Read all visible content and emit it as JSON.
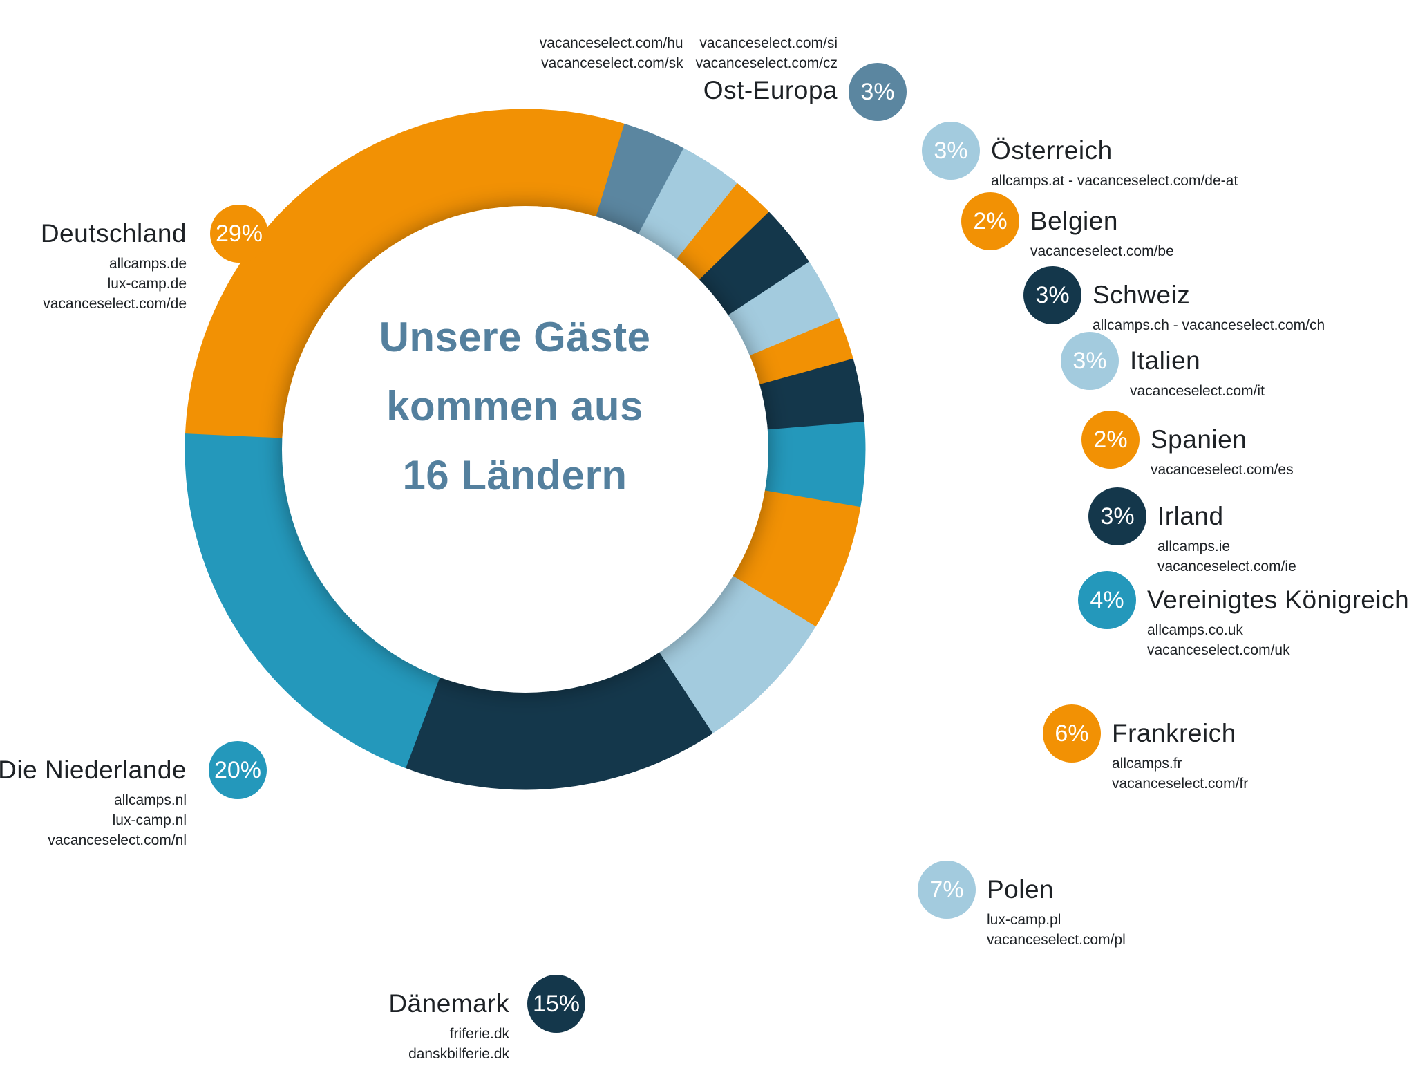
{
  "center": {
    "line1": "Unsere Gäste",
    "line2": "kommen aus",
    "line3": "16 Ländern"
  },
  "colors": {
    "orange": "#f29104",
    "teal": "#2498bb",
    "navy": "#14374b",
    "light_blue": "#a3cbde",
    "steel_blue": "#5b86a0",
    "center_text": "#54809e",
    "label_text": "#1d2125"
  },
  "chart_data": {
    "type": "donut",
    "title": "Unsere Gäste kommen aus 16 Ländern",
    "unit": "%",
    "start_angle_deg": 272.6,
    "legend_position": "around",
    "segments": [
      {
        "label": "Deutschland",
        "value": 29,
        "color": "#f29104"
      },
      {
        "label": "Ost-Europa",
        "value": 3,
        "color": "#5b86a0"
      },
      {
        "label": "Österreich",
        "value": 3,
        "color": "#a3cbde"
      },
      {
        "label": "Belgien",
        "value": 2,
        "color": "#f29104"
      },
      {
        "label": "Schweiz",
        "value": 3,
        "color": "#14374b"
      },
      {
        "label": "Italien",
        "value": 3,
        "color": "#a3cbde"
      },
      {
        "label": "Spanien",
        "value": 2,
        "color": "#f29104"
      },
      {
        "label": "Irland",
        "value": 3,
        "color": "#14374b"
      },
      {
        "label": "Vereinigtes Königreich",
        "value": 4,
        "color": "#2498bb"
      },
      {
        "label": "Frankreich",
        "value": 6,
        "color": "#f29104"
      },
      {
        "label": "Polen",
        "value": 7,
        "color": "#a3cbde"
      },
      {
        "label": "Dänemark",
        "value": 15,
        "color": "#14374b"
      },
      {
        "label": "Die Niederlande",
        "value": 20,
        "color": "#2498bb"
      }
    ]
  },
  "labels": {
    "deutschland": {
      "pct": "29%",
      "name": "Deutschland",
      "color": "#f29104",
      "links": [
        "allcamps.de",
        "lux-camp.de",
        "vacanceselect.com/de"
      ]
    },
    "niederlande": {
      "pct": "20%",
      "name": "Die Niederlande",
      "color": "#2498bb",
      "links": [
        "allcamps.nl",
        "lux-camp.nl",
        "vacanceselect.com/nl"
      ]
    },
    "daenemark": {
      "pct": "15%",
      "name": "Dänemark",
      "color": "#14374b",
      "links": [
        "friferie.dk",
        "danskbilferie.dk"
      ]
    },
    "ost_europa": {
      "pct": "3%",
      "name": "Ost-Europa",
      "color": "#5b86a0",
      "links_col1": [
        "vacanceselect.com/hu",
        "vacanceselect.com/sk"
      ],
      "links_col2": [
        "vacanceselect.com/si",
        "vacanceselect.com/cz"
      ]
    },
    "oesterreich": {
      "pct": "3%",
      "name": "Österreich",
      "color": "#a3cbde",
      "links": [
        "allcamps.at - vacanceselect.com/de-at"
      ]
    },
    "belgien": {
      "pct": "2%",
      "name": "Belgien",
      "color": "#f29104",
      "links": [
        "vacanceselect.com/be"
      ]
    },
    "schweiz": {
      "pct": "3%",
      "name": "Schweiz",
      "color": "#14374b",
      "links": [
        "allcamps.ch - vacanceselect.com/ch"
      ]
    },
    "italien": {
      "pct": "3%",
      "name": "Italien",
      "color": "#a3cbde",
      "links": [
        "vacanceselect.com/it"
      ]
    },
    "spanien": {
      "pct": "2%",
      "name": "Spanien",
      "color": "#f29104",
      "links": [
        "vacanceselect.com/es"
      ]
    },
    "irland": {
      "pct": "3%",
      "name": "Irland",
      "color": "#14374b",
      "links": [
        "allcamps.ie",
        "vacanceselect.com/ie"
      ]
    },
    "uk": {
      "pct": "4%",
      "name": "Vereinigtes Königreich",
      "color": "#2498bb",
      "links": [
        "allcamps.co.uk",
        "vacanceselect.com/uk"
      ]
    },
    "frankreich": {
      "pct": "6%",
      "name": "Frankreich",
      "color": "#f29104",
      "links": [
        "allcamps.fr",
        "vacanceselect.com/fr"
      ]
    },
    "polen": {
      "pct": "7%",
      "name": "Polen",
      "color": "#a3cbde",
      "links": [
        "lux-camp.pl",
        "vacanceselect.com/pl"
      ]
    }
  }
}
